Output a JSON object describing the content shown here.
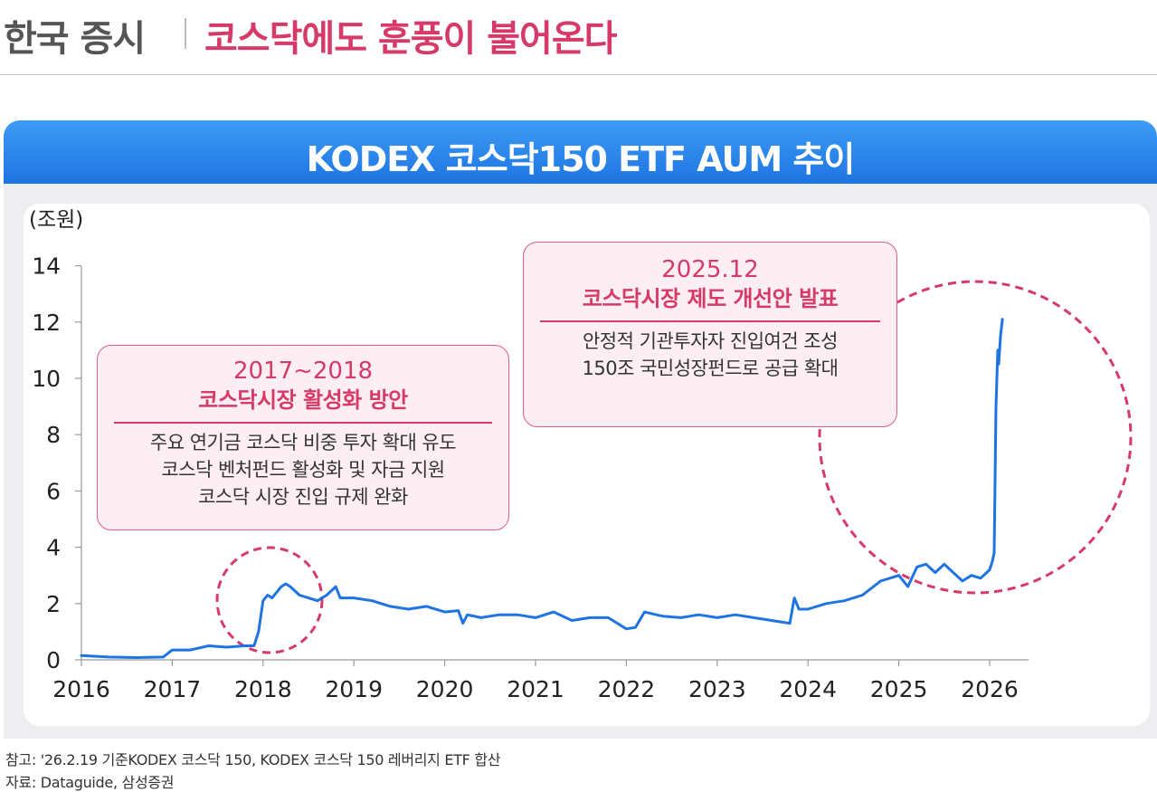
{
  "header": {
    "section": "한국 증시",
    "headline": "코스닥에도 훈풍이 불어온다"
  },
  "banner": {
    "title": "KODEX 코스닥150 ETF AUM 추이"
  },
  "chart_data": {
    "type": "line",
    "title": "KODEX 코스닥150 ETF AUM 추이",
    "ylabel": "(조원)",
    "xlabel": "",
    "ylim": [
      0,
      14
    ],
    "y_ticks": [
      "0",
      "2",
      "4",
      "6",
      "8",
      "10",
      "12",
      "14"
    ],
    "x_ticks": [
      "2016",
      "2017",
      "2018",
      "2019",
      "2020",
      "2021",
      "2022",
      "2023",
      "2024",
      "2025",
      "2026"
    ],
    "grid": false,
    "color": "#1e74e2",
    "series": [
      {
        "x": [
          2016.0,
          2016.3,
          2016.6,
          2016.9,
          2017.0,
          2017.2,
          2017.4,
          2017.6,
          2017.8,
          2017.9,
          2017.95,
          2018.0,
          2018.05,
          2018.1,
          2018.2,
          2018.25,
          2018.3,
          2018.4,
          2018.5,
          2018.6,
          2018.7,
          2018.8,
          2018.85,
          2019.0,
          2019.2,
          2019.4,
          2019.6,
          2019.8,
          2020.0,
          2020.15,
          2020.2,
          2020.25,
          2020.4,
          2020.6,
          2020.8,
          2021.0,
          2021.2,
          2021.4,
          2021.6,
          2021.8,
          2022.0,
          2022.1,
          2022.2,
          2022.4,
          2022.6,
          2022.8,
          2023.0,
          2023.2,
          2023.4,
          2023.6,
          2023.8,
          2023.85,
          2023.9,
          2024.0,
          2024.2,
          2024.4,
          2024.6,
          2024.8,
          2025.0,
          2025.1,
          2025.2,
          2025.3,
          2025.4,
          2025.5,
          2025.6,
          2025.7,
          2025.8,
          2025.9,
          2026.0,
          2026.03,
          2026.05,
          2026.07,
          2026.09,
          2026.1,
          2026.12,
          2026.14
        ],
        "y": [
          0.15,
          0.1,
          0.08,
          0.1,
          0.35,
          0.35,
          0.5,
          0.45,
          0.5,
          0.5,
          1.0,
          2.1,
          2.3,
          2.2,
          2.6,
          2.7,
          2.6,
          2.3,
          2.2,
          2.1,
          2.3,
          2.6,
          2.2,
          2.2,
          2.1,
          1.9,
          1.8,
          1.9,
          1.7,
          1.75,
          1.3,
          1.6,
          1.5,
          1.6,
          1.6,
          1.5,
          1.7,
          1.4,
          1.5,
          1.5,
          1.1,
          1.15,
          1.7,
          1.55,
          1.5,
          1.6,
          1.5,
          1.6,
          1.5,
          1.4,
          1.3,
          2.2,
          1.8,
          1.8,
          2.0,
          2.1,
          2.3,
          2.8,
          3.0,
          2.6,
          3.3,
          3.4,
          3.1,
          3.4,
          3.1,
          2.8,
          3.0,
          2.9,
          3.2,
          3.5,
          3.8,
          9.0,
          11.0,
          10.5,
          11.5,
          12.1
        ]
      }
    ],
    "annotations": [
      {
        "date": "2017~2018",
        "title": "코스닥시장 활성화 방안",
        "lines": [
          "주요 연기금 코스닥 비중 투자 확대 유도",
          "코스닥 벤처펀드 활성화 및 자금 지원",
          "코스닥 시장 진입 규제 완화"
        ]
      },
      {
        "date": "2025.12",
        "title": "코스닥시장 제도 개선안 발표",
        "lines": [
          "안정적 기관투자자 진입여건 조성",
          "150조 국민성장펀드로 공급 확대"
        ]
      }
    ],
    "highlight_color": "#d63a69"
  },
  "footnotes": {
    "note": "참고: '26.2.19 기준KODEX 코스닥 150, KODEX 코스닥 150 레버리지 ETF 합산",
    "source": "자료: Dataguide, 삼성증권"
  }
}
